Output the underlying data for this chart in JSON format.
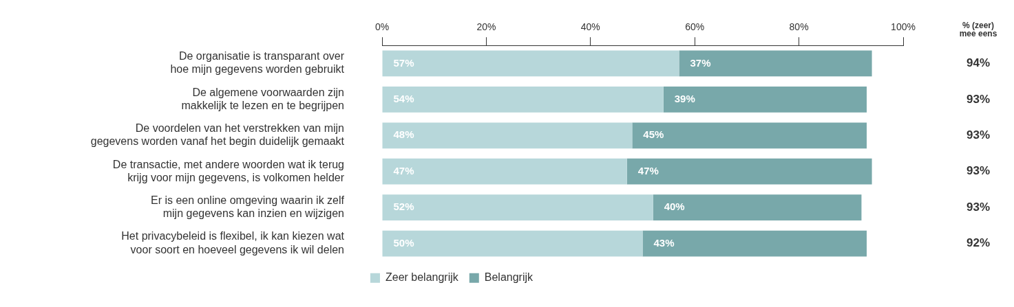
{
  "chart_data": {
    "type": "bar",
    "orientation": "horizontal",
    "stacked": true,
    "categories": [
      "De organisatie is transparant over hoe mijn gegevens worden gebruikt",
      "De algemene voorwaarden zijn makkelijk te lezen en te begrijpen",
      "De voordelen van het verstrekken van mijn gegevens worden vanaf het begin duidelijk gemaakt",
      "De transactie, met andere woorden wat ik terug krijg voor mijn gegevens, is volkomen helder",
      "Er is een online omgeving waarin ik zelf mijn gegevens kan inzien en wijzigen",
      "Het privacybeleid is flexibel, ik kan kiezen wat voor soort en hoeveel gegevens ik wil delen"
    ],
    "series": [
      {
        "name": "Zeer belangrijk",
        "color": "#b7d7da",
        "values": [
          57,
          54,
          48,
          47,
          52,
          50
        ],
        "value_labels": [
          "57%",
          "54%",
          "48%",
          "47%",
          "52%",
          "50%"
        ]
      },
      {
        "name": "Belangrijk",
        "color": "#78a8aa",
        "values": [
          37,
          39,
          45,
          47,
          40,
          43
        ],
        "value_labels": [
          "37%",
          "39%",
          "45%",
          "47%",
          "40%",
          "43%"
        ]
      }
    ],
    "xlim": [
      0,
      100
    ],
    "xticks": [
      {
        "value": 0,
        "label": "0%"
      },
      {
        "value": 20,
        "label": "20%"
      },
      {
        "value": 40,
        "label": "40%"
      },
      {
        "value": 60,
        "label": "60%"
      },
      {
        "value": 80,
        "label": "80%"
      },
      {
        "value": 100,
        "label": "100%"
      }
    ],
    "annotations": [
      "% (zeer) mee eens",
      "94%",
      "93%",
      "93%",
      "93%",
      "93%",
      "92%"
    ],
    "grid": false,
    "legend": "bottom"
  }
}
